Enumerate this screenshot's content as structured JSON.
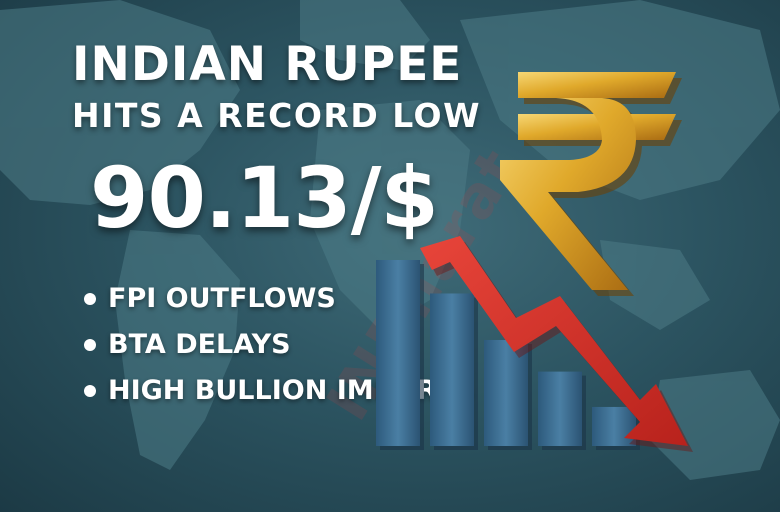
{
  "headline": {
    "line1": "INDIAN RUPEE",
    "line2": "HITS A RECORD LOW"
  },
  "rate": "90.13/$",
  "reasons": [
    "FPI OUTFLOWS",
    "BTA DELAYS",
    "HIGH BULLION IMPORTS"
  ],
  "watermark": "INBharat",
  "bars": {
    "levels": [
      1.0,
      0.82,
      0.57,
      0.4,
      0.21
    ]
  },
  "icons": {
    "currency": "rupee-symbol",
    "trend": "down-arrow"
  },
  "colors": {
    "background": "#2c5461",
    "bars": "#3f6f94",
    "arrow": "#d9332b",
    "gold": "#e0a92b",
    "text": "#ffffff"
  }
}
